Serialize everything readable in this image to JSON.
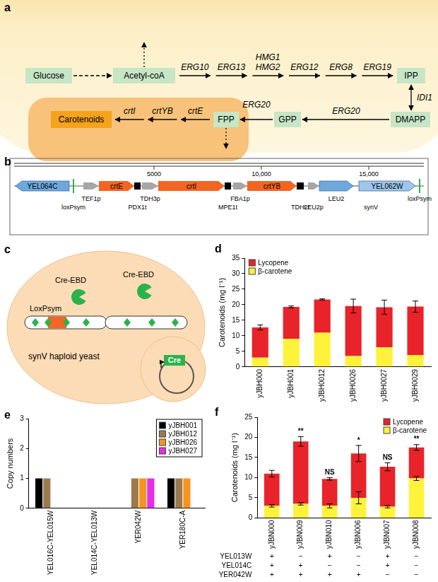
{
  "panel_labels": [
    "a",
    "b",
    "c",
    "d",
    "e",
    "f"
  ],
  "panel_a": {
    "nodes": {
      "glucose": "Glucose",
      "acetyl_coa": "Acetyl-coA",
      "ipp": "IPP",
      "dmapp": "DMAPP",
      "gpp": "GPP",
      "fpp": "FPP",
      "carotenoids": "Carotenoids"
    },
    "mva_genes": [
      [
        "ERG10"
      ],
      [
        "ERG13"
      ],
      [
        "HMG1",
        "HMG2"
      ],
      [
        "ERG12"
      ],
      [
        "ERG8"
      ],
      [
        "ERG19"
      ]
    ],
    "isomerase": "IDI1",
    "erg20": [
      "ERG20",
      "ERG20"
    ],
    "crt_genes": [
      "crtE",
      "crtYB",
      "crtI"
    ]
  },
  "panel_b": {
    "ruler": [
      {
        "value": 5000,
        "label": "5000"
      },
      {
        "value": 10000,
        "label": "10,000"
      },
      {
        "value": 15000,
        "label": "15,000"
      }
    ],
    "features": [
      {
        "name": "YEL064C",
        "kind": "gene",
        "strand": "-"
      },
      {
        "name": "loxPsym",
        "kind": "site"
      },
      {
        "name": "TEF1p",
        "kind": "promoter",
        "strand": "+"
      },
      {
        "name": "crtE",
        "kind": "cds",
        "strand": "+"
      },
      {
        "name": "PDX1t",
        "kind": "terminator"
      },
      {
        "name": "TDH3p",
        "kind": "promoter",
        "strand": "+"
      },
      {
        "name": "crtI",
        "kind": "cds",
        "strand": "+"
      },
      {
        "name": "MPE1t",
        "kind": "terminator"
      },
      {
        "name": "FBA1p",
        "kind": "promoter",
        "strand": "+"
      },
      {
        "name": "crtYB",
        "kind": "cds",
        "strand": "+"
      },
      {
        "name": "TDH2t",
        "kind": "terminator"
      },
      {
        "name": "LEU2p",
        "kind": "promoter",
        "strand": "+"
      },
      {
        "name": "LEU2",
        "kind": "gene",
        "strand": "+"
      },
      {
        "name": "YEL062W",
        "kind": "gene",
        "strand": "+"
      },
      {
        "name": "loxPsym",
        "kind": "site"
      }
    ],
    "chromosome": "synV"
  },
  "panel_c": {
    "site": "LoxPsym",
    "recombinase_labels": [
      "Cre-EBD",
      "Cre-EBD"
    ],
    "cell": "synV haploid yeast",
    "plasmid_gene": "Cre"
  },
  "chart_data": [
    {
      "type": "bar",
      "stacked": true,
      "categories": [
        "yJBH000",
        "yJBH001",
        "yJBH0012",
        "yJBH0026",
        "yJBH0027",
        "yJBH0029"
      ],
      "series": [
        {
          "name": "Lycopene",
          "color": "#e8232a",
          "values": [
            9.7,
            10.3,
            10.7,
            16.1,
            12.9,
            15.6
          ],
          "errors": [
            0.8,
            0.3,
            0.2,
            2.2,
            2.3,
            1.8
          ]
        },
        {
          "name": "β-carotene",
          "color": "#fff23a",
          "values": [
            3.0,
            9.0,
            11.0,
            3.5,
            6.3,
            3.8
          ]
        }
      ],
      "y_label": "Carotenoids (mg l⁻¹)",
      "ylim": [
        0,
        35
      ],
      "yticks": [
        0,
        5,
        10,
        15,
        20,
        25,
        30,
        35
      ],
      "legend": "top-left",
      "grid": false
    },
    {
      "type": "bar",
      "categories": [
        "YEL016C-YEL015W",
        "YEL014C-YEL013W",
        "YER042W",
        "YER180C-A"
      ],
      "series": [
        {
          "name": "yJBH001",
          "color": "#000000",
          "values": [
            1,
            0,
            0,
            1
          ]
        },
        {
          "name": "yJBH012",
          "color": "#9c7a4e",
          "values": [
            1,
            0,
            1,
            1
          ]
        },
        {
          "name": "yJBH026",
          "color": "#f7931e",
          "values": [
            0,
            0,
            1,
            1
          ]
        },
        {
          "name": "yJBH027",
          "color": "#e62ee6",
          "values": [
            0,
            0,
            1,
            0
          ]
        }
      ],
      "y_label": "Copy numbers",
      "ylim": [
        0,
        3
      ],
      "yticks": [
        0,
        1,
        2,
        3
      ],
      "legend": "top-right",
      "grid": false
    },
    {
      "type": "bar",
      "stacked": true,
      "categories": [
        "yJBN000",
        "yJBN009",
        "yJBN010",
        "yJBN006",
        "yJBN007",
        "yJBN008"
      ],
      "series": [
        {
          "name": "Lycopene",
          "color": "#e8232a",
          "values": [
            8.0,
            15.5,
            6.7,
            11.0,
            9.9,
            7.7
          ],
          "errors": [
            0.8,
            1.2,
            0.3,
            2.0,
            1.0,
            0.7
          ]
        },
        {
          "name": "β-carotene",
          "color": "#fff23a",
          "values": [
            3.0,
            3.5,
            3.0,
            5.0,
            2.8,
            9.8
          ],
          "errors": [
            0.3,
            0.3,
            0.5,
            1.5,
            0.3,
            0.5
          ]
        }
      ],
      "y_label": "Carotenoids (mg l⁻¹)",
      "ylim": [
        0,
        25
      ],
      "yticks": [
        0,
        5,
        10,
        15,
        20,
        25
      ],
      "annotations": [
        null,
        "**",
        "NS",
        "*",
        "NS",
        "**"
      ],
      "genotype_table": {
        "rows": [
          {
            "label": "YEL013W",
            "values": [
              "+",
              "−",
              "+",
              "−",
              "+",
              "−"
            ]
          },
          {
            "label": "YEL014C",
            "values": [
              "+",
              "+",
              "−",
              "−",
              "+",
              "−"
            ]
          },
          {
            "label": "YER042W",
            "values": [
              "+",
              "+",
              "+",
              "+",
              "−",
              "−"
            ]
          }
        ]
      },
      "legend": "top-right",
      "grid": false
    }
  ]
}
